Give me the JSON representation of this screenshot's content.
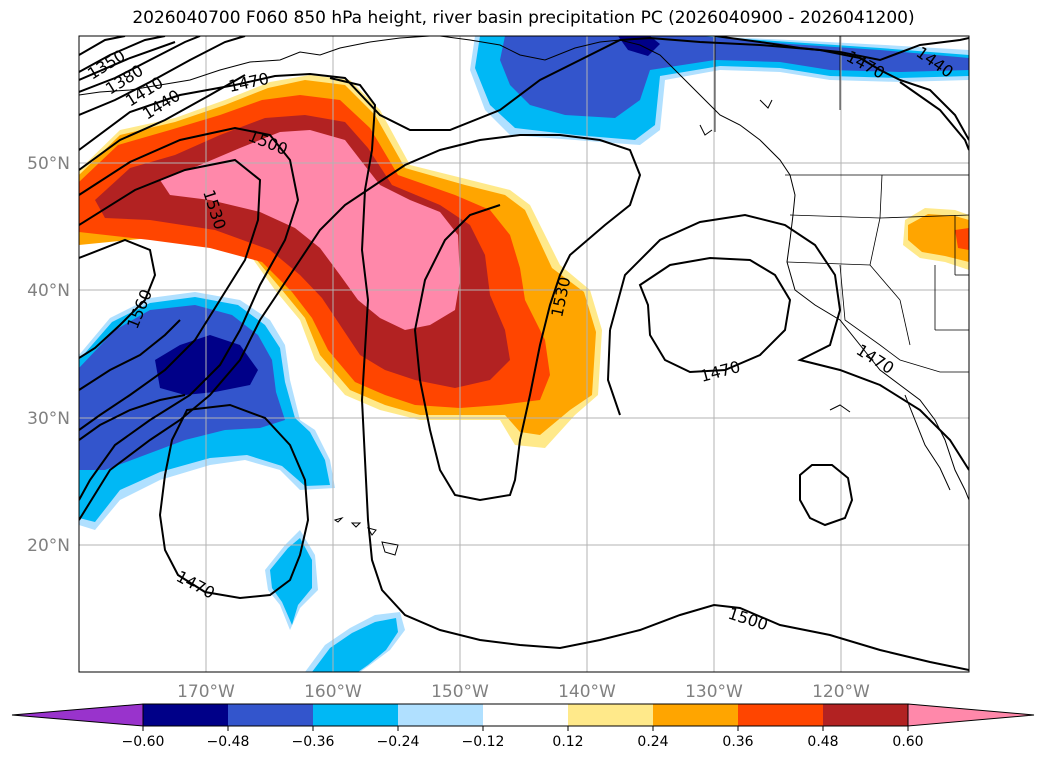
{
  "title": "2026040700 F060 850 hPa height, river basin precipitation PC (2026040900 - 2026041200)",
  "map": {
    "lat_labels": [
      "50°N",
      "40°N",
      "30°N",
      "20°N"
    ],
    "lon_labels": [
      "170°W",
      "160°W",
      "150°W",
      "140°W",
      "130°W",
      "120°W"
    ],
    "contour_labels": [
      "1350",
      "1380",
      "1410",
      "1440",
      "1470",
      "1500",
      "1530",
      "1560",
      "1470",
      "1530",
      "1470",
      "1470",
      "1500",
      "1470",
      "1440"
    ],
    "colors": {
      "purple": "#9933cc",
      "navy": "#000088",
      "royal_blue": "#3355cc",
      "deep_sky": "#00b8f5",
      "light_blue": "#b0e0ff",
      "white": "#ffffff",
      "light_yellow": "#ffe98a",
      "orange": "#ffa500",
      "orange_red": "#ff4500",
      "firebrick": "#b22222",
      "pink": "#ff88aa"
    }
  },
  "colorbar": {
    "ticks": [
      "−0.60",
      "−0.48",
      "−0.36",
      "−0.24",
      "−0.12",
      "0.12",
      "0.24",
      "0.36",
      "0.48",
      "0.60"
    ],
    "colors": [
      "#9933cc",
      "#000088",
      "#3355cc",
      "#00b8f5",
      "#b0e0ff",
      "#ffffff",
      "#ffe98a",
      "#ffa500",
      "#ff4500",
      "#b22222",
      "#ff88aa"
    ]
  }
}
